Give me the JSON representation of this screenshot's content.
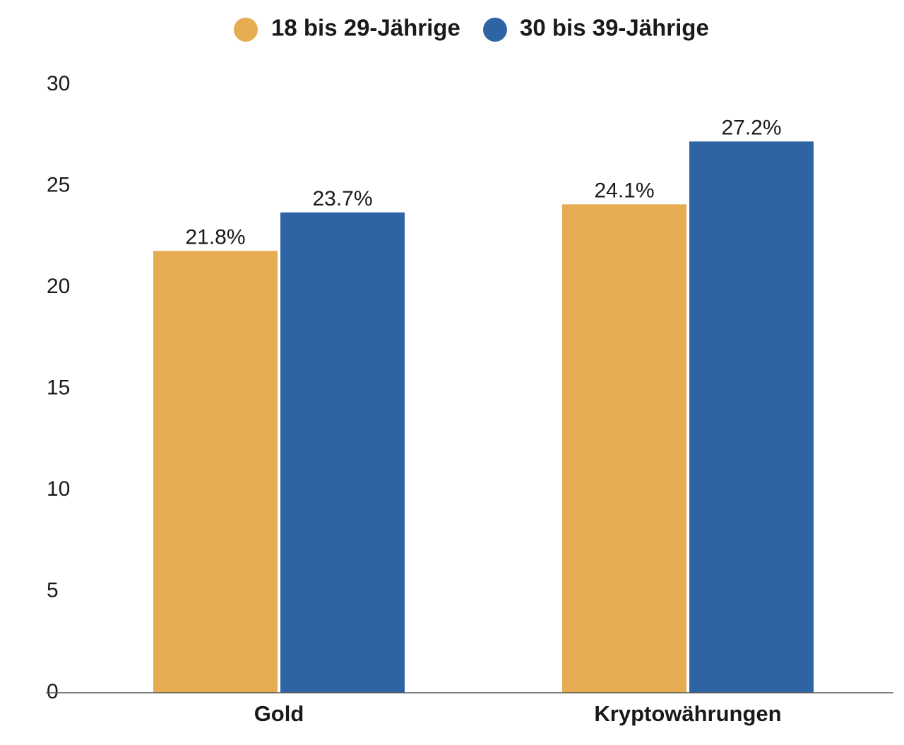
{
  "chart_data": {
    "type": "bar",
    "categories": [
      "Gold",
      "Kryptowährungen"
    ],
    "series": [
      {
        "name": "18 bis 29-Jährige",
        "color": "#E5AC52",
        "values": [
          21.8,
          24.1
        ],
        "value_labels": [
          "21.8%",
          "24.1%"
        ]
      },
      {
        "name": "30 bis 39-Jährige",
        "color": "#2E64A4",
        "values": [
          23.7,
          27.2
        ],
        "value_labels": [
          "23.7%",
          "27.2%"
        ]
      }
    ],
    "yticks": [
      "0",
      "5",
      "10",
      "15",
      "20",
      "25",
      "30"
    ],
    "ylim": [
      0,
      30
    ],
    "grid": false,
    "legend_position": "top-center",
    "title": "",
    "xlabel": "",
    "ylabel": ""
  }
}
